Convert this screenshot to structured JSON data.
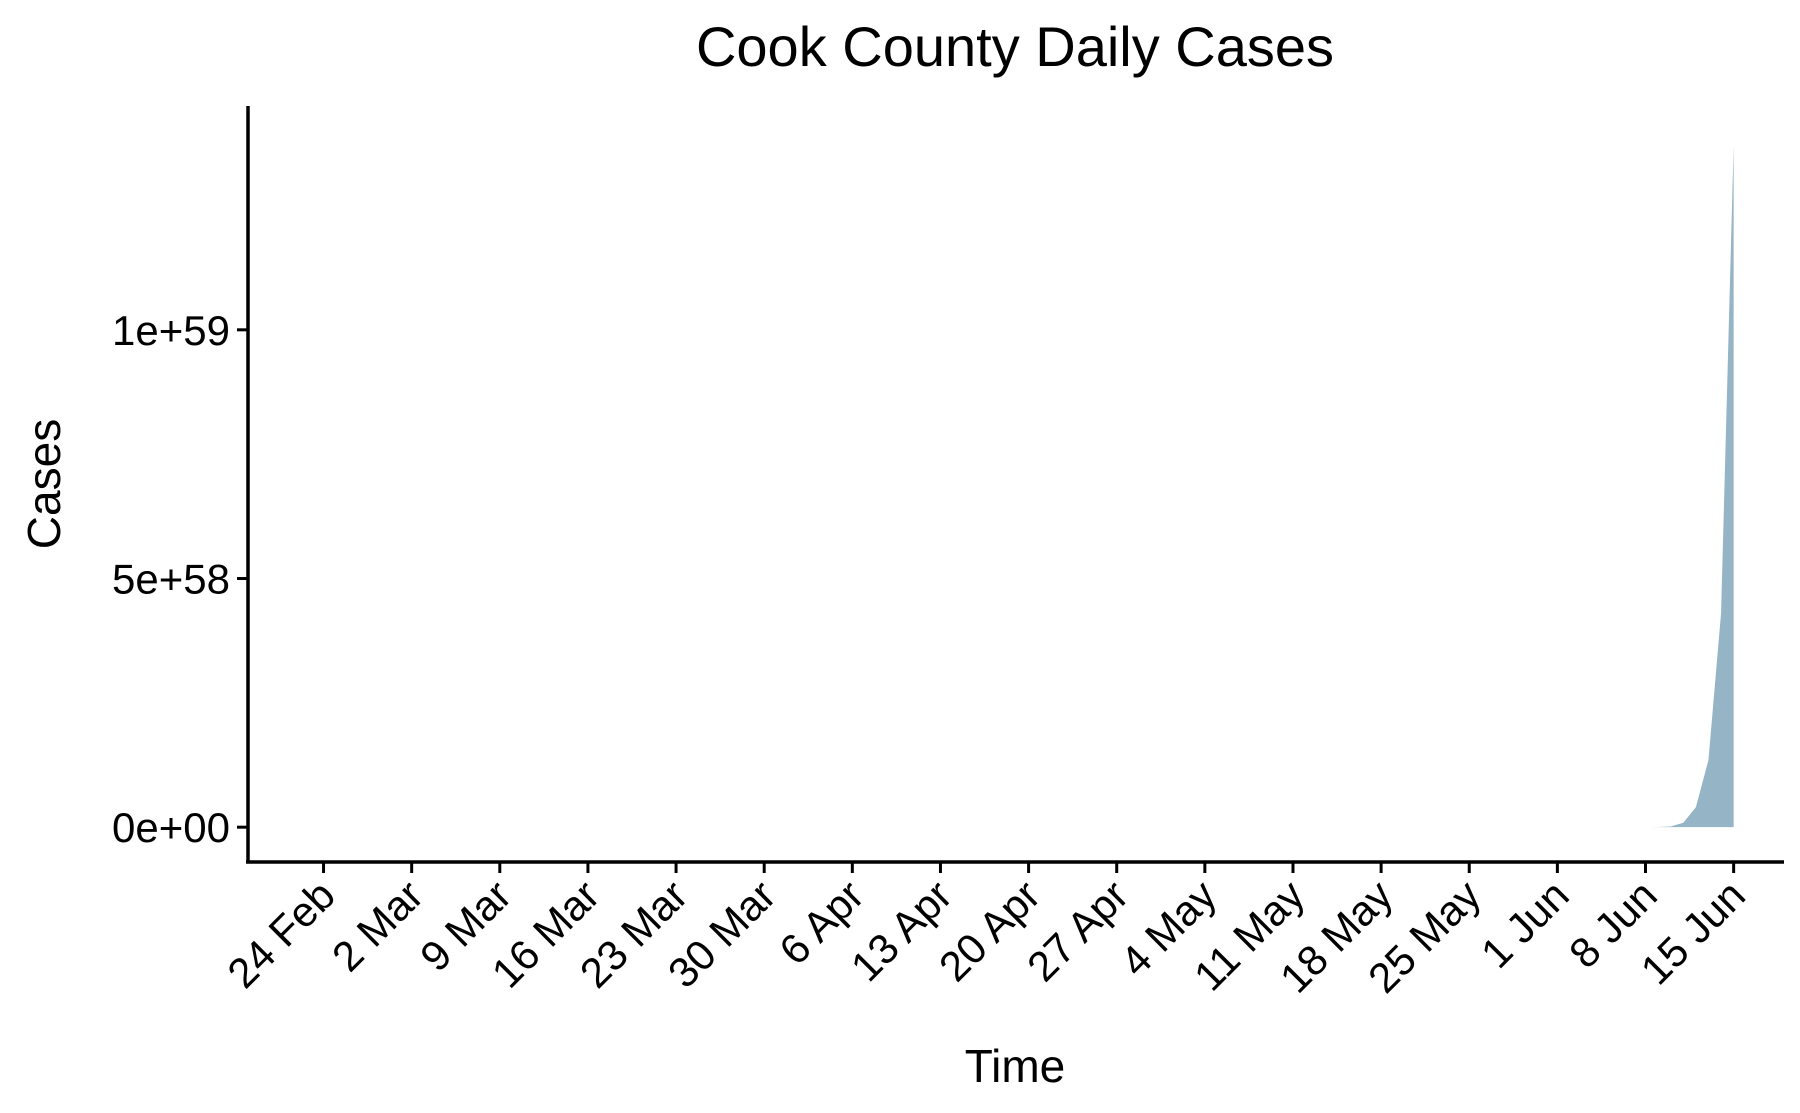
{
  "chart_data": {
    "type": "area",
    "title": "Cook County Daily Cases",
    "xlabel": "Time",
    "ylabel": "Cases",
    "x_ticks": [
      {
        "date": "2020-02-24",
        "label": "24 Feb"
      },
      {
        "date": "2020-03-02",
        "label": "2 Mar"
      },
      {
        "date": "2020-03-09",
        "label": "9 Mar"
      },
      {
        "date": "2020-03-16",
        "label": "16 Mar"
      },
      {
        "date": "2020-03-23",
        "label": "23 Mar"
      },
      {
        "date": "2020-03-30",
        "label": "30 Mar"
      },
      {
        "date": "2020-04-06",
        "label": "6 Apr"
      },
      {
        "date": "2020-04-13",
        "label": "13 Apr"
      },
      {
        "date": "2020-04-20",
        "label": "20 Apr"
      },
      {
        "date": "2020-04-27",
        "label": "27 Apr"
      },
      {
        "date": "2020-05-04",
        "label": "4 May"
      },
      {
        "date": "2020-05-11",
        "label": "11 May"
      },
      {
        "date": "2020-05-18",
        "label": "18 May"
      },
      {
        "date": "2020-05-25",
        "label": "25 May"
      },
      {
        "date": "2020-06-01",
        "label": "1 Jun"
      },
      {
        "date": "2020-06-08",
        "label": "8 Jun"
      },
      {
        "date": "2020-06-15",
        "label": "15 Jun"
      }
    ],
    "y_ticks": [
      {
        "value": 0,
        "label": "0e+00"
      },
      {
        "value": 5e+58,
        "label": "5e+58"
      },
      {
        "value": 1e+59,
        "label": "1e+59"
      }
    ],
    "xlim": [
      "2020-02-18",
      "2020-06-19"
    ],
    "ylim": [
      -7e+57,
      1.45e+59
    ],
    "grid": false,
    "legend": "none",
    "fill_color": "#95b4c5",
    "series": [
      {
        "x": [
          "2020-06-07",
          "2020-06-08",
          "2020-06-09",
          "2020-06-10",
          "2020-06-11",
          "2020-06-12",
          "2020-06-13",
          "2020-06-14",
          "2020-06-15"
        ],
        "values": [
          0,
          5e+54,
          3e+55,
          1.5e+56,
          9e+56,
          4e+57,
          1.35e+58,
          4.3e+58,
          1.37e+59
        ]
      }
    ]
  }
}
